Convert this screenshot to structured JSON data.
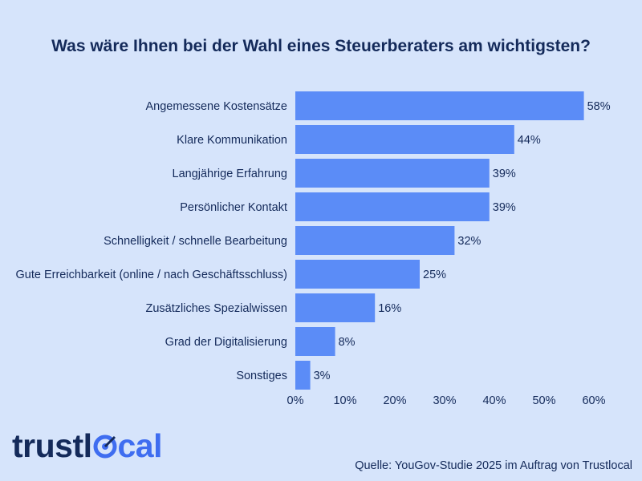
{
  "chart_data": {
    "type": "bar",
    "orientation": "horizontal",
    "title": "Was wäre Ihnen bei der Wahl eines Steuerberaters am wichtigsten?",
    "categories": [
      "Angemessene Kostensätze",
      "Klare Kommunikation",
      "Langjährige Erfahrung",
      "Persönlicher Kontakt",
      "Schnelligkeit / schnelle Bearbeitung",
      "Gute Erreichbarkeit (online / nach Geschäftsschluss)",
      "Zusätzliches Spezialwissen",
      "Grad der Digitalisierung",
      "Sonstiges"
    ],
    "values": [
      58,
      44,
      39,
      39,
      32,
      25,
      16,
      8,
      3
    ],
    "value_labels": [
      "58%",
      "44%",
      "39%",
      "39%",
      "32%",
      "25%",
      "16%",
      "8%",
      "3%"
    ],
    "xlim": [
      0,
      60
    ],
    "xticks": [
      0,
      10,
      20,
      30,
      40,
      50,
      60
    ],
    "xtick_labels": [
      "0%",
      "10%",
      "20%",
      "30%",
      "40%",
      "50%",
      "60%"
    ],
    "grid": false,
    "legend": "none"
  },
  "colors": {
    "background": "#d6e4fb",
    "bar": "#5b8cf7",
    "text": "#142a5a",
    "brand_accent": "#3f6df0"
  },
  "branding": {
    "logo_part1": "trustl",
    "logo_part2": "cal",
    "logo_icon": "target-o-icon"
  },
  "footer": {
    "source": "Quelle: YouGov-Studie 2025 im Auftrag von Trustlocal"
  }
}
